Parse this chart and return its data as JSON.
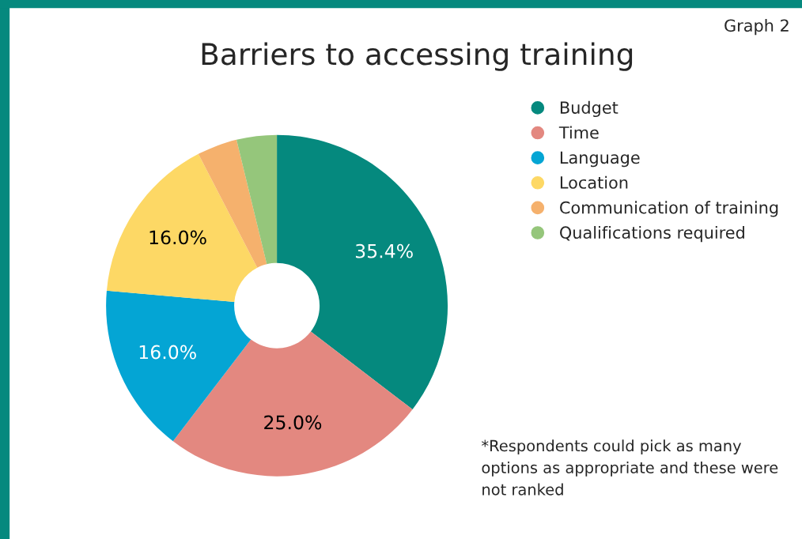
{
  "chart_data": {
    "type": "donut",
    "title": "Barriers to accessing training",
    "categories": [
      "Budget",
      "Time",
      "Language",
      "Location",
      "Communication of training",
      "Qualifications required"
    ],
    "values": [
      35.4,
      25.0,
      16.0,
      16.0,
      3.8,
      3.8
    ],
    "value_labels": [
      "35.4%",
      "25.0%",
      "16.0%",
      "16.0%",
      null,
      null
    ],
    "colors": [
      "#05897e",
      "#e38880",
      "#04a5d4",
      "#fdd865",
      "#f5b16d",
      "#95c67b"
    ],
    "legend": "top right",
    "annotations": [
      "Graph 2",
      "*Respondents could pick as many options as appropriate and these were not ranked"
    ]
  }
}
